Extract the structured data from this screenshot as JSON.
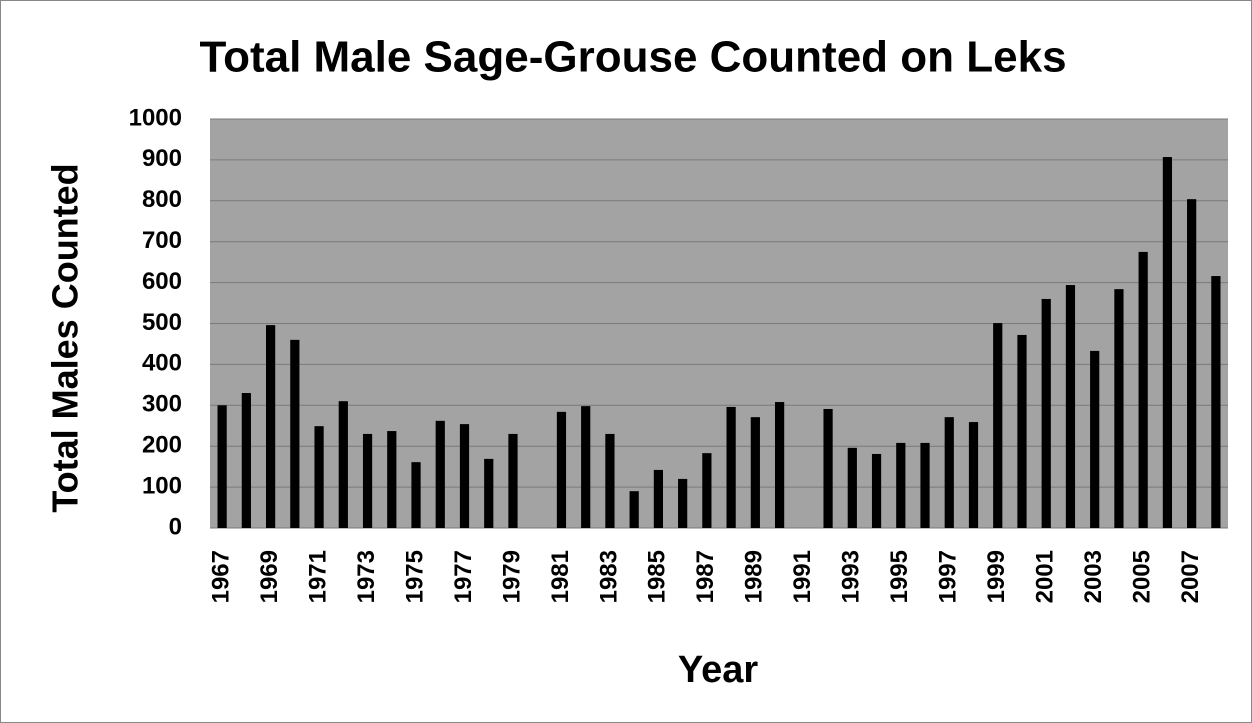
{
  "chart_data": {
    "type": "bar",
    "title": "Total Male Sage-Grouse Counted on Leks",
    "x_label": "Year",
    "y_label": "Total Males Counted",
    "categories": [
      "1967",
      null,
      "1969",
      null,
      "1971",
      null,
      "1973",
      null,
      "1975",
      null,
      "1977",
      null,
      "1979",
      null,
      "1981",
      null,
      "1983",
      null,
      "1985",
      null,
      "1987",
      null,
      "1989",
      null,
      "1991",
      null,
      "1993",
      null,
      "1995",
      null,
      "1997",
      null,
      "1999",
      null,
      "2001",
      null,
      "2003",
      null,
      "2005",
      null,
      "2007",
      null
    ],
    "values": [
      300,
      330,
      496,
      460,
      249,
      310,
      230,
      237,
      161,
      262,
      254,
      169,
      230,
      null,
      284,
      298,
      230,
      90,
      142,
      120,
      183,
      296,
      271,
      308,
      null,
      291,
      196,
      181,
      208,
      208,
      271,
      259,
      501,
      472,
      560,
      594,
      433,
      584,
      675,
      907,
      804,
      616
    ],
    "color": "#000000",
    "ylim": [
      0,
      1000
    ],
    "yticks": [
      0,
      100,
      200,
      300,
      400,
      500,
      600,
      700,
      800,
      900,
      1000
    ],
    "grid": true
  }
}
